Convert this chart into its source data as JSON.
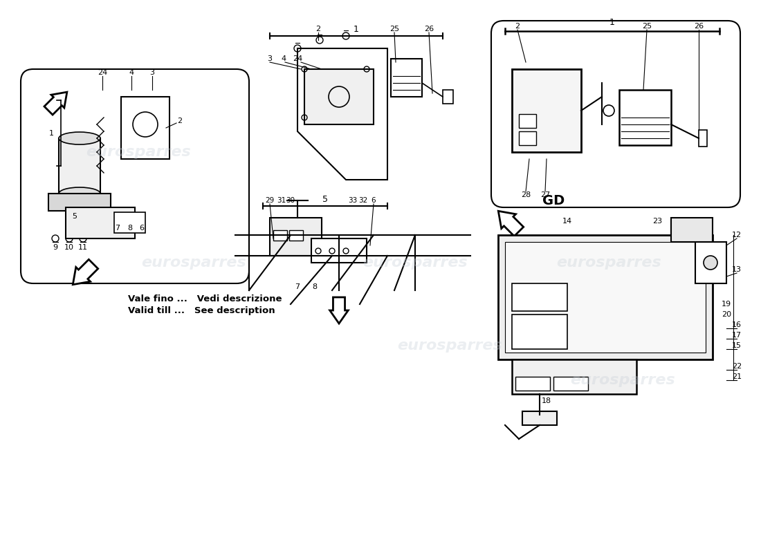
{
  "title": "",
  "background_color": "#ffffff",
  "watermark_text": "eurosparres",
  "watermark_color": "#c8d0d8",
  "watermark_alpha": 0.35,
  "footer_text_line1": "Vale fino ...   Vedi descrizione",
  "footer_text_line2": "Valid till ...   See description",
  "gd_label": "GD",
  "fig_width": 11.0,
  "fig_height": 8.0,
  "dpi": 100
}
